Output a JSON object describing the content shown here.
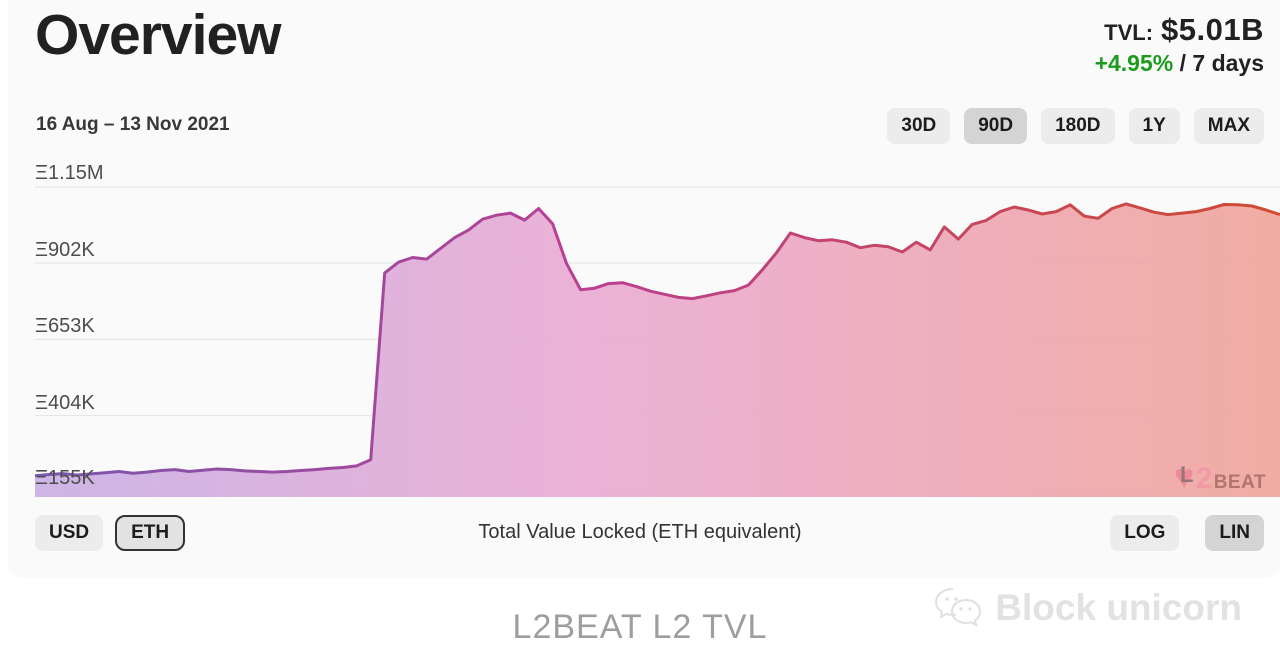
{
  "header": {
    "title": "Overview",
    "tvl_label": "TVL:",
    "tvl_value": "$5.01B",
    "change": "+4.95%",
    "change_suffix": " / 7 days",
    "change_color": "#1d9b1d"
  },
  "controls": {
    "date_range": "16 Aug – 13 Nov 2021",
    "range_buttons": [
      {
        "label": "30D",
        "active": false
      },
      {
        "label": "90D",
        "active": true
      },
      {
        "label": "180D",
        "active": false
      },
      {
        "label": "1Y",
        "active": false
      },
      {
        "label": "MAX",
        "active": false
      }
    ]
  },
  "chart_data": {
    "type": "area",
    "title": "Total Value Locked (ETH equivalent)",
    "unit": "ETH",
    "x_range": [
      "16 Aug 2021",
      "13 Nov 2021"
    ],
    "y_ticks": [
      "Ξ1.15M",
      "Ξ902K",
      "Ξ653K",
      "Ξ404K",
      "Ξ155K"
    ],
    "y_tick_values_k": [
      1150,
      902,
      653,
      404,
      155
    ],
    "grid": "horizontal",
    "legend": "none",
    "series": [
      {
        "name": "TVL (ETH equivalent)",
        "values_k_eth": [
          208,
          212,
          215,
          210,
          214,
          218,
          222,
          216,
          220,
          225,
          228,
          222,
          226,
          230,
          228,
          224,
          222,
          220,
          222,
          225,
          228,
          232,
          235,
          240,
          260,
          870,
          905,
          920,
          915,
          950,
          985,
          1010,
          1045,
          1058,
          1065,
          1042,
          1080,
          1030,
          900,
          815,
          820,
          835,
          838,
          825,
          810,
          800,
          790,
          786,
          795,
          805,
          812,
          830,
          880,
          935,
          1000,
          985,
          975,
          978,
          970,
          952,
          960,
          955,
          938,
          970,
          945,
          1020,
          980,
          1028,
          1041,
          1070,
          1085,
          1075,
          1062,
          1070,
          1092,
          1055,
          1048,
          1080,
          1095,
          1082,
          1068,
          1060,
          1065,
          1070,
          1080,
          1093,
          1092,
          1088,
          1075,
          1060
        ]
      }
    ],
    "line_gradient": [
      "#7a57ad",
      "#bb3f92",
      "#d04b30"
    ],
    "fill_gradient": [
      "#c8aee4",
      "#eaaad2",
      "#f0a49a"
    ],
    "gridline_color": "#e3e3e3"
  },
  "chart_watermark": {
    "l": "L",
    "two": "2",
    "beat": "BEAT",
    "heart_icon": "♥"
  },
  "toolbar": {
    "currency_buttons": [
      {
        "label": "USD",
        "active": false
      },
      {
        "label": "ETH",
        "active": true
      }
    ],
    "center_label": "Total Value Locked (ETH equivalent)",
    "scale_buttons": [
      {
        "label": "LOG",
        "active": false
      },
      {
        "label": "LIN",
        "active": true
      }
    ]
  },
  "footer": {
    "title": "L2BEAT L2 TVL",
    "watermark_text": "Block unicorn"
  }
}
